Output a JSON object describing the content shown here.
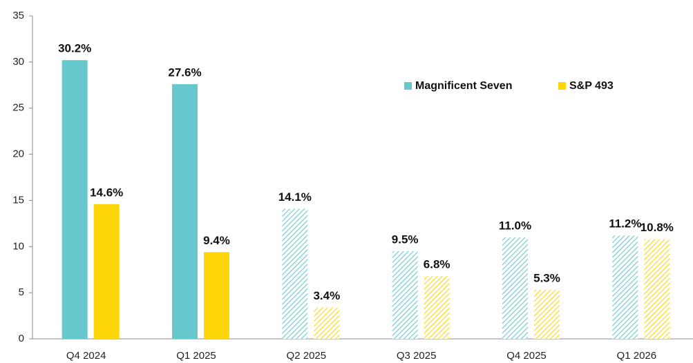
{
  "chart_data": {
    "type": "bar",
    "categories": [
      "Q4 2024",
      "Q1 2025",
      "Q2 2025",
      "Q3 2025",
      "Q4 2025",
      "Q1 2026"
    ],
    "series": [
      {
        "name": "Magnificent Seven",
        "color": "#66c8cc",
        "values": [
          30.2,
          27.6,
          14.1,
          9.5,
          11.0,
          11.2
        ],
        "value_labels": [
          "30.2%",
          "27.6%",
          "14.1%",
          "9.5%",
          "11.0%",
          "11.2%"
        ],
        "hatched": [
          false,
          false,
          true,
          true,
          true,
          true
        ]
      },
      {
        "name": "S&P 493",
        "color": "#ffd60a",
        "values": [
          14.6,
          9.4,
          3.4,
          6.8,
          5.3,
          10.8
        ],
        "value_labels": [
          "14.6%",
          "9.4%",
          "3.4%",
          "6.8%",
          "5.3%",
          "10.8%"
        ],
        "hatched": [
          false,
          false,
          true,
          true,
          true,
          true
        ]
      }
    ],
    "ylim": [
      0,
      35
    ],
    "yticks": [
      0,
      5,
      10,
      15,
      20,
      25,
      30,
      35
    ],
    "grid": false,
    "legend": "upper right"
  }
}
